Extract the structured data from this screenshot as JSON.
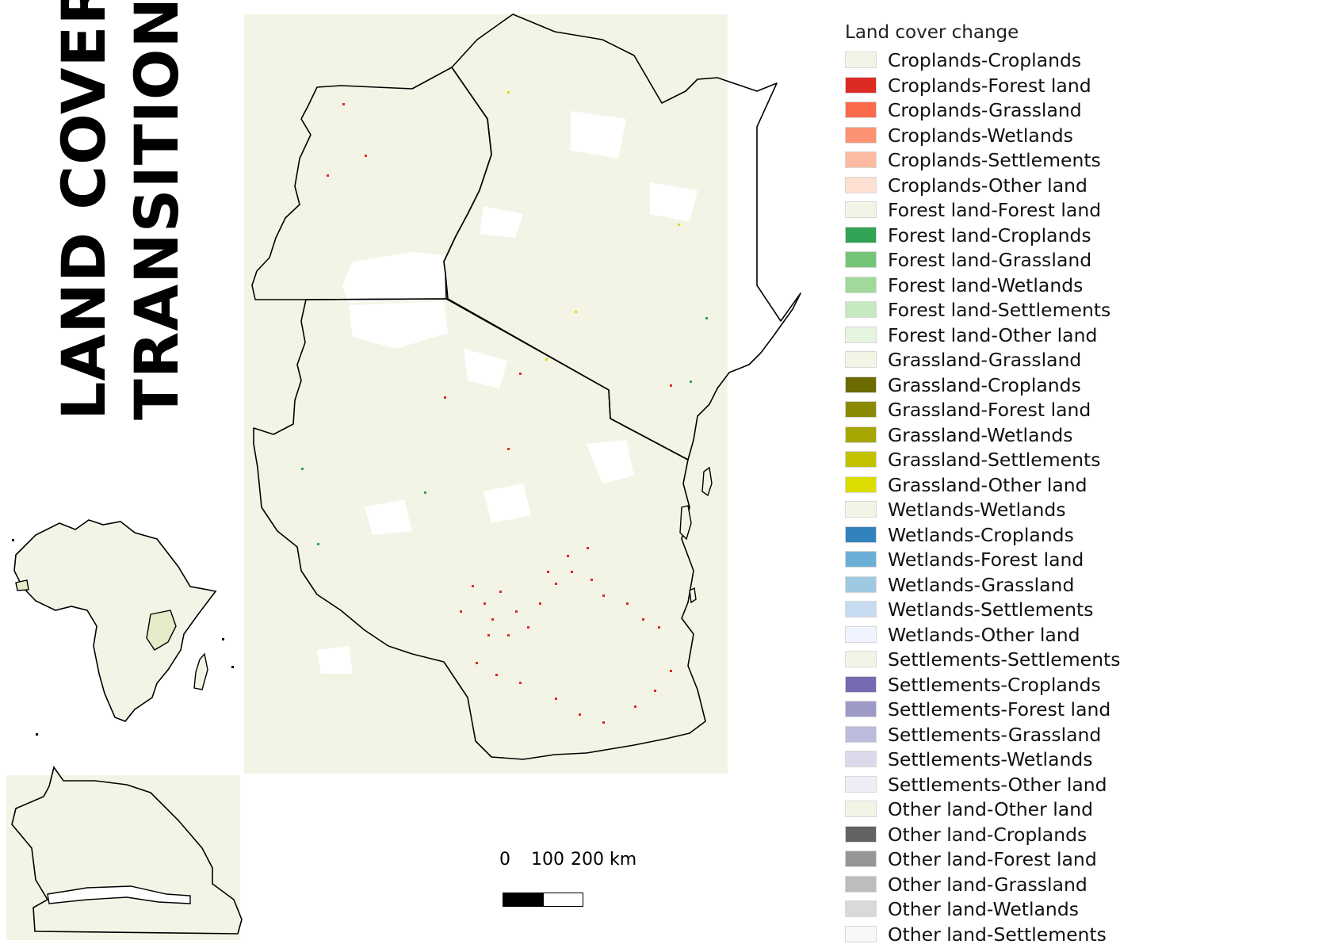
{
  "title": {
    "line1": "LAND COVER",
    "line2": "TRANSITIONS"
  },
  "legend": {
    "title": "Land cover change",
    "items": [
      {
        "label": "Croplands-Croplands",
        "color": "#f4f4e6"
      },
      {
        "label": "Croplands-Forest land",
        "color": "#dc2a24"
      },
      {
        "label": "Croplands-Grassland",
        "color": "#fb6a4a"
      },
      {
        "label": "Croplands-Wetlands",
        "color": "#fc9272"
      },
      {
        "label": "Croplands-Settlements",
        "color": "#fcbba1"
      },
      {
        "label": "Croplands-Other land",
        "color": "#fee0d2"
      },
      {
        "label": "Forest land-Forest land",
        "color": "#f4f4e6"
      },
      {
        "label": "Forest land-Croplands",
        "color": "#31a354"
      },
      {
        "label": "Forest land-Grassland",
        "color": "#74c476"
      },
      {
        "label": "Forest land-Wetlands",
        "color": "#a1d99b"
      },
      {
        "label": "Forest land-Settlements",
        "color": "#c7e9c0"
      },
      {
        "label": "Forest land-Other land",
        "color": "#e5f5e0"
      },
      {
        "label": "Grassland-Grassland",
        "color": "#f4f4e6"
      },
      {
        "label": "Grassland-Croplands",
        "color": "#6b6b00"
      },
      {
        "label": "Grassland-Forest land",
        "color": "#8a8a05"
      },
      {
        "label": "Grassland-Wetlands",
        "color": "#a6a600"
      },
      {
        "label": "Grassland-Settlements",
        "color": "#c2c200"
      },
      {
        "label": "Grassland-Other land",
        "color": "#dcdc00"
      },
      {
        "label": "Wetlands-Wetlands",
        "color": "#f4f4e6"
      },
      {
        "label": "Wetlands-Croplands",
        "color": "#3182bd"
      },
      {
        "label": "Wetlands-Forest land",
        "color": "#6baed6"
      },
      {
        "label": "Wetlands-Grassland",
        "color": "#9ecae1"
      },
      {
        "label": "Wetlands-Settlements",
        "color": "#c6dbef"
      },
      {
        "label": "Wetlands-Other land",
        "color": "#eff3ff"
      },
      {
        "label": "Settlements-Settlements",
        "color": "#f4f4e6"
      },
      {
        "label": "Settlements-Croplands",
        "color": "#756bb1"
      },
      {
        "label": "Settlements-Forest land",
        "color": "#9e9ac8"
      },
      {
        "label": "Settlements-Grassland",
        "color": "#bcbddc"
      },
      {
        "label": "Settlements-Wetlands",
        "color": "#dadaeb"
      },
      {
        "label": "Settlements-Other land",
        "color": "#efedf5"
      },
      {
        "label": "Other land-Other land",
        "color": "#f4f4e6"
      },
      {
        "label": "Other land-Croplands",
        "color": "#636363"
      },
      {
        "label": "Other land-Forest land",
        "color": "#969696"
      },
      {
        "label": "Other land-Grassland",
        "color": "#bdbdbd"
      },
      {
        "label": "Other land-Wetlands",
        "color": "#d9d9d9"
      },
      {
        "label": "Other land-Settlements",
        "color": "#f7f7f7"
      }
    ]
  },
  "scale": {
    "labels": [
      "0",
      "100",
      "200 km"
    ]
  },
  "colors": {
    "land": "#f4f4e6",
    "border": "#000000",
    "highlight": "#e4ebc8",
    "change_red": "#dc2a24",
    "change_green": "#31a354",
    "change_yellow": "#dcdc00"
  }
}
